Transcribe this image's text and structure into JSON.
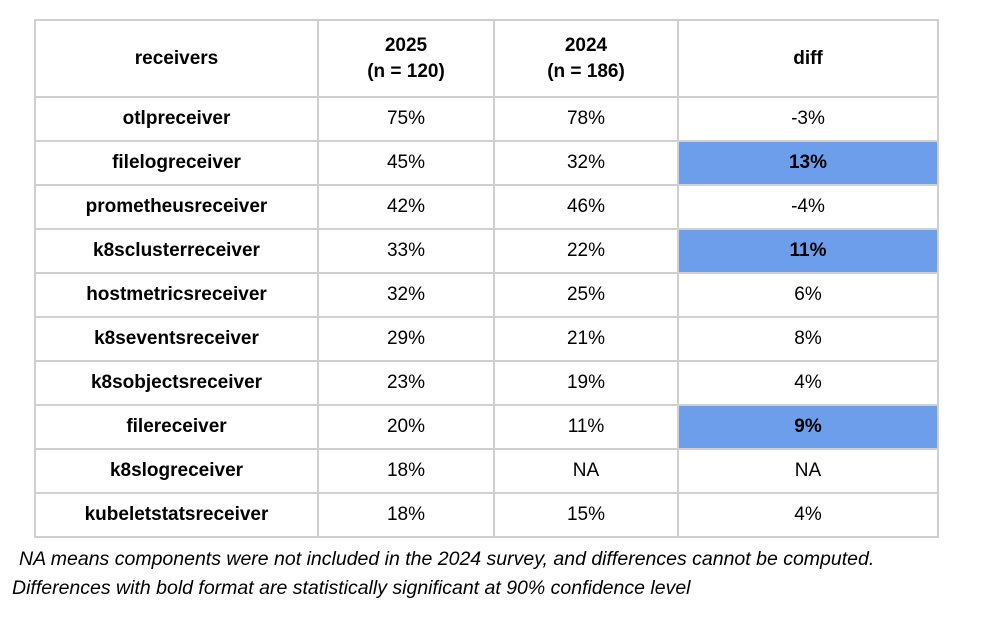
{
  "colors": {
    "highlight": "#6d9eeb",
    "border": "#d0d0d0",
    "text": "#000000",
    "background": "#ffffff"
  },
  "chart_data": {
    "type": "table",
    "title": "",
    "columns": [
      {
        "key": "receiver",
        "line1": "receivers",
        "line2": ""
      },
      {
        "key": "y2025",
        "line1": "2025",
        "line2": "(n = 120)"
      },
      {
        "key": "y2024",
        "line1": "2024",
        "line2": "(n = 186)"
      },
      {
        "key": "diff",
        "line1": "diff",
        "line2": ""
      }
    ],
    "rows": [
      {
        "receiver": "otlpreceiver",
        "y2025": "75%",
        "y2024": "78%",
        "diff": "-3%",
        "significant": false
      },
      {
        "receiver": "filelogreceiver",
        "y2025": "45%",
        "y2024": "32%",
        "diff": "13%",
        "significant": true
      },
      {
        "receiver": "prometheusreceiver",
        "y2025": "42%",
        "y2024": "46%",
        "diff": "-4%",
        "significant": false
      },
      {
        "receiver": "k8sclusterreceiver",
        "y2025": "33%",
        "y2024": "22%",
        "diff": "11%",
        "significant": true
      },
      {
        "receiver": "hostmetricsreceiver",
        "y2025": "32%",
        "y2024": "25%",
        "diff": "6%",
        "significant": false
      },
      {
        "receiver": "k8seventsreceiver",
        "y2025": "29%",
        "y2024": "21%",
        "diff": "8%",
        "significant": false
      },
      {
        "receiver": "k8sobjectsreceiver",
        "y2025": "23%",
        "y2024": "19%",
        "diff": "4%",
        "significant": false
      },
      {
        "receiver": "filereceiver",
        "y2025": "20%",
        "y2024": "11%",
        "diff": "9%",
        "significant": true
      },
      {
        "receiver": "k8slogreceiver",
        "y2025": "18%",
        "y2024": "NA",
        "diff": "NA",
        "significant": false
      },
      {
        "receiver": "kubeletstatsreceiver",
        "y2025": "18%",
        "y2024": "15%",
        "diff": "4%",
        "significant": false
      }
    ],
    "highlighted_rows": [
      "filelogreceiver",
      "k8sclusterreceiver",
      "filereceiver"
    ],
    "notes": [
      "NA means components were not included in the 2024 survey, and differences cannot be computed.",
      "Differences with bold format are statistically significant at 90% confidence level"
    ]
  }
}
